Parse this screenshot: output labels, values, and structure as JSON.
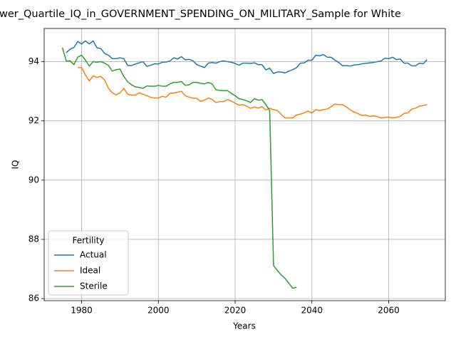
{
  "chart_data": {
    "type": "line",
    "title": "wer_Quartile_IQ_in_GOVERNMENT_SPENDING_ON_MILITARY_Sample for White",
    "x_label": "Years",
    "y_label": "IQ",
    "x": [
      1975,
      1976,
      1977,
      1978,
      1979,
      1980,
      1981,
      1982,
      1983,
      1984,
      1985,
      1986,
      1987,
      1988,
      1989,
      1990,
      1991,
      1992,
      1993,
      1994,
      1995,
      1996,
      1997,
      1998,
      1999,
      2000,
      2001,
      2002,
      2003,
      2004,
      2005,
      2006,
      2007,
      2008,
      2009,
      2010,
      2011,
      2012,
      2013,
      2014,
      2015,
      2016,
      2017,
      2018,
      2019,
      2020,
      2021,
      2022,
      2023,
      2024,
      2025,
      2026,
      2027,
      2028,
      2029,
      2030,
      2031,
      2032,
      2033,
      2034,
      2035,
      2036,
      2037,
      2038,
      2039,
      2040,
      2041,
      2042,
      2043,
      2044,
      2045,
      2046,
      2047,
      2048,
      2049,
      2050,
      2051,
      2052,
      2053,
      2054,
      2055,
      2056,
      2057,
      2058,
      2059,
      2060,
      2061,
      2062,
      2063,
      2064,
      2065,
      2066,
      2067,
      2068,
      2069,
      2070
    ],
    "series": [
      {
        "name": "Actual",
        "color": "#1f77b4",
        "values": [
          null,
          94.3,
          94.42,
          94.48,
          94.68,
          94.6,
          94.7,
          94.6,
          94.7,
          94.47,
          94.44,
          94.28,
          94.22,
          94.1,
          94.1,
          94.13,
          94.1,
          93.87,
          93.87,
          93.92,
          93.96,
          94.0,
          93.84,
          93.88,
          93.93,
          93.92,
          93.98,
          93.99,
          94.02,
          94.13,
          94.09,
          94.17,
          94.06,
          94.08,
          94.03,
          93.9,
          93.85,
          93.8,
          93.95,
          93.97,
          93.95,
          94.0,
          94.03,
          94.0,
          93.98,
          93.94,
          93.88,
          93.95,
          93.95,
          93.94,
          93.96,
          93.9,
          93.9,
          93.72,
          93.78,
          93.6,
          93.65,
          93.65,
          93.62,
          93.68,
          93.73,
          93.8,
          93.95,
          93.96,
          94.05,
          94.05,
          94.22,
          94.2,
          94.24,
          94.15,
          94.15,
          94.05,
          93.97,
          93.86,
          93.87,
          93.85,
          93.89,
          93.9,
          93.93,
          93.94,
          93.96,
          93.97,
          94.0,
          94.02,
          94.12,
          94.1,
          94.15,
          94.07,
          94.09,
          93.95,
          93.95,
          93.86,
          93.86,
          93.95,
          93.93,
          94.07
        ]
      },
      {
        "name": "Ideal",
        "color": "#ff7f0e",
        "values": [
          null,
          null,
          null,
          null,
          93.8,
          93.8,
          93.55,
          93.35,
          93.52,
          93.47,
          93.5,
          93.38,
          93.1,
          92.95,
          92.88,
          92.95,
          93.1,
          92.9,
          92.87,
          92.87,
          92.95,
          92.9,
          92.85,
          92.8,
          92.77,
          92.77,
          92.83,
          92.8,
          92.93,
          92.94,
          92.97,
          93.0,
          92.85,
          92.8,
          92.77,
          92.76,
          92.66,
          92.7,
          92.77,
          92.73,
          92.62,
          92.65,
          92.65,
          92.72,
          92.67,
          92.6,
          92.53,
          92.55,
          92.5,
          92.42,
          92.47,
          92.43,
          92.48,
          92.37,
          92.42,
          92.38,
          92.35,
          92.22,
          92.1,
          92.1,
          92.1,
          92.2,
          92.23,
          92.27,
          92.33,
          92.27,
          92.38,
          92.35,
          92.38,
          92.4,
          92.48,
          92.57,
          92.55,
          92.55,
          92.47,
          92.37,
          92.3,
          92.25,
          92.18,
          92.2,
          92.15,
          92.17,
          92.15,
          92.1,
          92.12,
          92.13,
          92.1,
          92.12,
          92.15,
          92.25,
          92.27,
          92.4,
          92.43,
          92.5,
          92.52,
          92.55
        ]
      },
      {
        "name": "Sterile",
        "color": "#2ca02c",
        "values": [
          94.47,
          94.02,
          94.03,
          93.9,
          94.15,
          94.22,
          94.05,
          93.85,
          94.0,
          93.98,
          94.0,
          93.95,
          93.87,
          93.68,
          93.73,
          93.75,
          93.5,
          93.32,
          93.22,
          93.15,
          93.13,
          93.1,
          93.18,
          93.17,
          93.17,
          93.2,
          93.17,
          93.17,
          93.25,
          93.3,
          93.3,
          93.33,
          93.2,
          93.22,
          93.3,
          93.3,
          93.27,
          93.25,
          93.3,
          93.25,
          93.05,
          93.03,
          93.02,
          93.02,
          92.93,
          92.85,
          92.75,
          92.72,
          92.68,
          92.62,
          92.75,
          92.7,
          92.72,
          92.55,
          92.35,
          87.12,
          86.95,
          86.8,
          86.68,
          86.52,
          86.35,
          86.38,
          null,
          null,
          null,
          null,
          null,
          null,
          null,
          null,
          null,
          null,
          null,
          null,
          null,
          null,
          null,
          null,
          null,
          null,
          null,
          null,
          null,
          null,
          null,
          null,
          null,
          null,
          null,
          null,
          null,
          null,
          null,
          null,
          null,
          null
        ]
      }
    ],
    "xlim": [
      1970.25,
      2074.75
    ],
    "ylim": [
      85.93,
      95.12
    ],
    "xticks": [
      1980,
      2000,
      2020,
      2040,
      2060
    ],
    "yticks": [
      86,
      88,
      90,
      92,
      94
    ],
    "grid": true,
    "legend_title": "Fertility",
    "legend_position": "lower left"
  }
}
